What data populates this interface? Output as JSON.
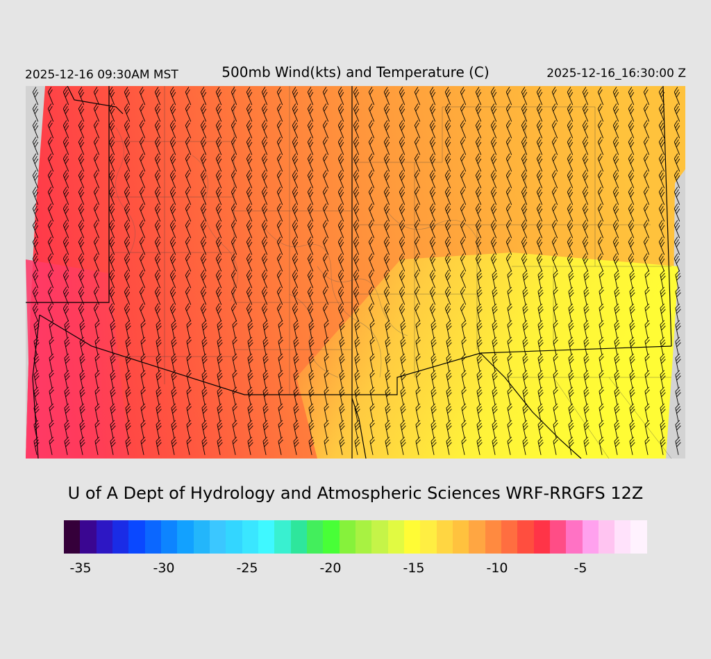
{
  "header": {
    "local_time": "2025-12-16 09:30AM MST",
    "title": "500mb Wind(kts) and Temperature (C)",
    "valid_time": "2025-12-16_16:30:00 Z"
  },
  "footer": {
    "credit": "U of A Dept of Hydrology and Atmospheric Sciences WRF-RRGFS 12Z"
  },
  "colorbar": {
    "units": "C",
    "min": -36,
    "max": -1,
    "colors": [
      "#35003a",
      "#3a0691",
      "#2d17c4",
      "#1a2ce6",
      "#0a48ff",
      "#0b67ff",
      "#0d84ff",
      "#12a1ff",
      "#23b6fb",
      "#3bc7ff",
      "#33d6ff",
      "#3ae6ff",
      "#3ff8ff",
      "#39f0d0",
      "#2ee69c",
      "#43ee5c",
      "#48ff37",
      "#86f23b",
      "#a8f242",
      "#c5f448",
      "#e1fa42",
      "#fffc35",
      "#ffee42",
      "#ffd642",
      "#ffc23e",
      "#ffa642",
      "#ff8a40",
      "#ff6e40",
      "#ff4e3f",
      "#ff3447",
      "#ff4d86",
      "#ff72c4",
      "#ffa1ee",
      "#ffc4f1",
      "#ffe2fb",
      "#fff2fe"
    ],
    "tick_labels": [
      "-35",
      "-30",
      "-25",
      "-20",
      "-15",
      "-10",
      "-5"
    ],
    "tick_values": [
      -35,
      -30,
      -25,
      -20,
      -15,
      -10,
      -5
    ]
  },
  "map": {
    "field": "temperature",
    "level": "500mb",
    "field_units": "C",
    "barb_units": "kts",
    "temperature_range_shown": [
      -12,
      -5
    ]
  }
}
